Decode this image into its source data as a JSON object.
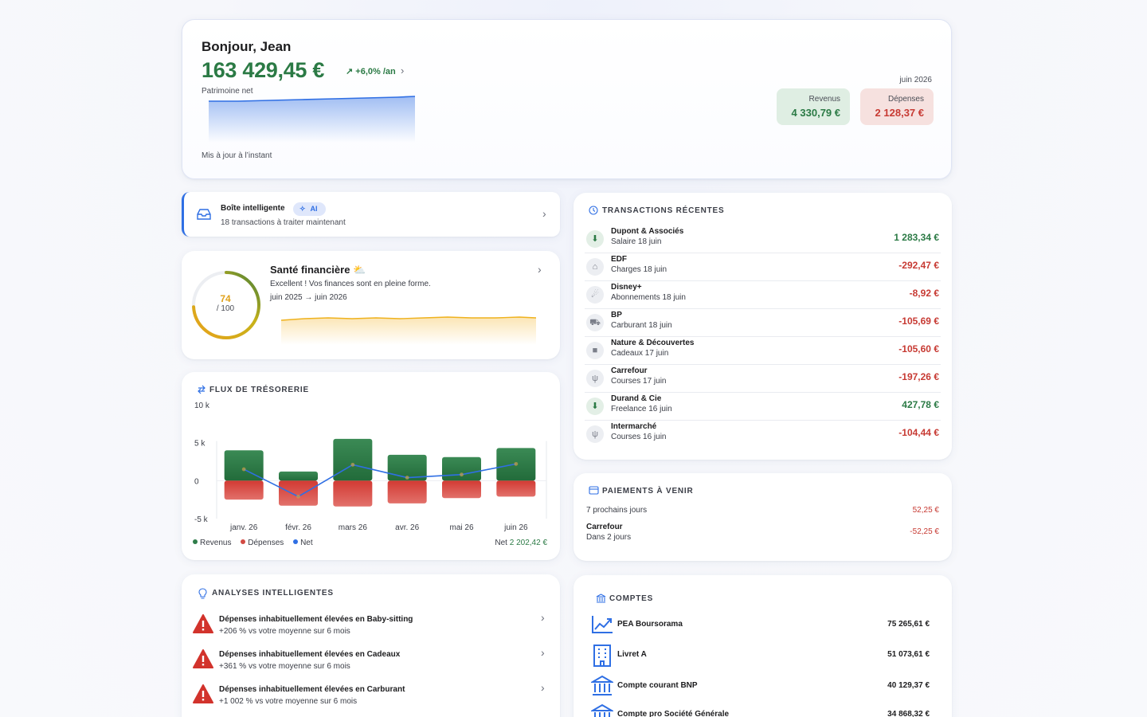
{
  "hero": {
    "greeting": "Bonjour, Jean",
    "net_worth": "163 429,45 €",
    "trend": "↗ +6,0% /an",
    "net_label": "Patrimoine net",
    "updated": "Mis à jour à l’instant",
    "month": "juin 2026",
    "income_label": "Revenus",
    "income_value": "4 330,79 €",
    "expense_label": "Dépenses",
    "expense_value": "2 128,37 €"
  },
  "inbox": {
    "title": "Boîte intelligente",
    "badge": "AI",
    "subtitle": "18 transactions à traiter maintenant"
  },
  "health": {
    "title": "Santé financière",
    "subtitle": "Excellent ! Vos finances sont en pleine forme.",
    "range": "juin 2025 → juin 2026",
    "score": "74",
    "max": "/ 100",
    "score_value": 74,
    "score_max": 100
  },
  "flux": {
    "title": "FLUX DE TRÉSORERIE",
    "legend_income": "Revenus",
    "legend_expense": "Dépenses",
    "legend_net": "Net",
    "net_label": "Net",
    "net_value": "2 202,42 €"
  },
  "chart_data": {
    "type": "bar",
    "categories": [
      "janv. 26",
      "févr. 26",
      "mars 26",
      "avr. 26",
      "mai 26",
      "juin 26"
    ],
    "y_ticks": [
      "10 k",
      "5 k",
      "0",
      "-5 k"
    ],
    "ylim": [
      -5000,
      10000
    ],
    "series": [
      {
        "name": "Revenus",
        "values": [
          4000,
          1200,
          5500,
          3400,
          3100,
          4300
        ],
        "color": "#2f7d4a"
      },
      {
        "name": "Dépenses",
        "values": [
          -2500,
          -3300,
          -3400,
          -3000,
          -2300,
          -2100
        ],
        "color": "#d24a43"
      },
      {
        "name": "Net",
        "values": [
          1500,
          -2100,
          2100,
          400,
          800,
          2200
        ],
        "color": "#2f6fe4"
      }
    ],
    "grid": true
  },
  "insights": {
    "title": "ANALYSES INTELLIGENTES",
    "items": [
      {
        "title": "Dépenses inhabituellement élevées en Baby-sitting",
        "sub": "+206 % vs votre moyenne sur 6 mois"
      },
      {
        "title": "Dépenses inhabituellement élevées en Cadeaux",
        "sub": "+361 % vs votre moyenne sur 6 mois"
      },
      {
        "title": "Dépenses inhabituellement élevées en Carburant",
        "sub": "+1 002 % vs votre moyenne sur 6 mois"
      }
    ]
  },
  "transactions": {
    "title": "TRANSACTIONS RÉCENTES",
    "items": [
      {
        "name": "Dupont & Associés",
        "cat": "Salaire  18 juin",
        "amount": "1 283,34 €",
        "icon": "income-icon"
      },
      {
        "name": "EDF",
        "cat": "Charges  18 juin",
        "amount": "-292,47 €",
        "icon": "home-icon"
      },
      {
        "name": "Disney+",
        "cat": "Abonnements  18 juin",
        "amount": "-8,92 €",
        "icon": "subscription-icon"
      },
      {
        "name": "BP",
        "cat": "Carburant  18 juin",
        "amount": "-105,69 €",
        "icon": "car-icon"
      },
      {
        "name": "Nature & Découvertes",
        "cat": "Cadeaux  17 juin",
        "amount": "-105,60 €",
        "icon": "gift-icon"
      },
      {
        "name": "Carrefour",
        "cat": "Courses  17 juin",
        "amount": "-197,26 €",
        "icon": "cutlery-icon"
      },
      {
        "name": "Durand & Cie",
        "cat": "Freelance  16 juin",
        "amount": "427,78 €",
        "icon": "income-icon"
      },
      {
        "name": "Intermarché",
        "cat": "Courses  16 juin",
        "amount": "-104,44 €",
        "icon": "cutlery-icon"
      }
    ]
  },
  "upcoming": {
    "title": "PAIEMENTS À VENIR",
    "period": "7 prochains jours",
    "period_total": "52,25 €",
    "item_name": "Carrefour",
    "item_when": "Dans 2 jours",
    "item_amount": "-52,25 €"
  },
  "accounts": {
    "title": "COMPTES",
    "items": [
      {
        "name": "PEA Boursorama",
        "value": "75 265,61 €"
      },
      {
        "name": "Livret A",
        "value": "51 073,61 €"
      },
      {
        "name": "Compte courant BNP",
        "value": "40 129,37 €"
      },
      {
        "name": "Compte pro Société Générale",
        "value": "34 868,32 €"
      }
    ]
  },
  "colors": {
    "accent": "#2f6fe4",
    "positive": "#2b7a45",
    "negative": "#c73a33",
    "score": "#e0a21b"
  }
}
